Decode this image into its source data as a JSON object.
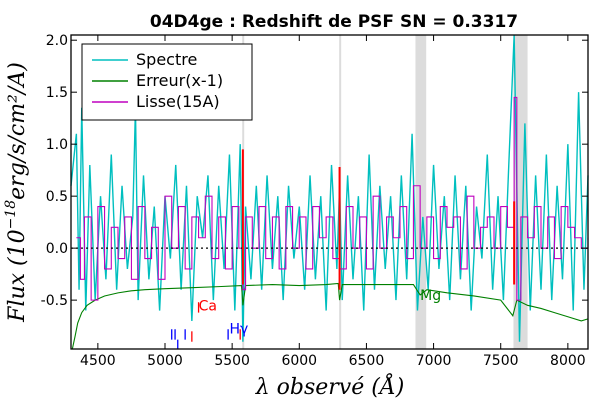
{
  "chart_data": {
    "type": "line",
    "title": "04D4ge : Redshift de PSF SN = 0.3317",
    "xlabel": "λ observé (Å)",
    "ylabel_prefix": "Flux (10",
    "ylabel_exp": "−18",
    "ylabel_suffix": "erg/s/cm²/A)",
    "xlim": [
      4300,
      8150
    ],
    "ylim": [
      -0.97,
      2.05
    ],
    "xticks": [
      4500,
      5000,
      5500,
      6000,
      6500,
      7000,
      7500,
      8000
    ],
    "yticks": [
      -0.5,
      0.0,
      0.5,
      1.0,
      1.5,
      2.0
    ],
    "ytick_labels": [
      "-0.5",
      "0.0",
      "0.5",
      "1.0",
      "1.5",
      "2.0"
    ],
    "zero_line": 0.0,
    "grey_bands": [
      [
        5575,
        5585
      ],
      [
        6297,
        6306
      ],
      [
        6865,
        6945
      ],
      [
        7595,
        7700
      ]
    ],
    "legend": {
      "position": "top-left",
      "entries": [
        {
          "label": "Spectre",
          "color": "#00bfbf"
        },
        {
          "label": "Erreur(x-1)",
          "color": "#008000"
        },
        {
          "label": "Lisse(15A)",
          "color": "#bf00bf"
        }
      ]
    },
    "series": [
      {
        "name": "Spectre",
        "color": "#00bfbf",
        "x": [
          4300,
          4340,
          4360,
          4380,
          4410,
          4440,
          4480,
          4520,
          4560,
          4600,
          4640,
          4680,
          4720,
          4760,
          4780,
          4800,
          4840,
          4880,
          4920,
          4960,
          5000,
          5040,
          5080,
          5120,
          5160,
          5200,
          5240,
          5280,
          5320,
          5360,
          5400,
          5440,
          5480,
          5520,
          5560,
          5580,
          5600,
          5640,
          5680,
          5720,
          5760,
          5800,
          5840,
          5880,
          5920,
          5960,
          6000,
          6040,
          6080,
          6120,
          6160,
          6200,
          6240,
          6280,
          6300,
          6320,
          6360,
          6400,
          6440,
          6480,
          6520,
          6560,
          6600,
          6640,
          6680,
          6720,
          6760,
          6800,
          6840,
          6880,
          6920,
          6960,
          7000,
          7040,
          7080,
          7120,
          7160,
          7200,
          7240,
          7280,
          7320,
          7360,
          7400,
          7440,
          7480,
          7520,
          7560,
          7600,
          7640,
          7680,
          7720,
          7760,
          7800,
          7840,
          7880,
          7920,
          7960,
          8000,
          8040,
          8080,
          8120,
          8150
        ],
        "y": [
          0.6,
          1.1,
          -0.4,
          1.35,
          -0.6,
          0.8,
          -0.5,
          0.5,
          -0.3,
          0.9,
          -0.4,
          0.6,
          -0.2,
          0.3,
          1.35,
          -0.5,
          0.7,
          -0.3,
          0.4,
          -0.6,
          0.5,
          -0.1,
          0.8,
          -0.4,
          0.6,
          -0.7,
          0.5,
          0.1,
          0.7,
          -0.5,
          0.6,
          -0.2,
          0.9,
          -0.6,
          1.0,
          -0.9,
          0.4,
          -0.3,
          0.6,
          -0.4,
          0.7,
          -0.2,
          0.5,
          -0.5,
          0.6,
          -0.1,
          0.4,
          -0.4,
          0.7,
          -0.3,
          0.5,
          -0.6,
          0.8,
          -0.2,
          0.6,
          -0.5,
          0.7,
          -0.3,
          0.5,
          -0.6,
          0.9,
          -0.4,
          0.6,
          -0.2,
          0.5,
          -0.5,
          0.7,
          -0.3,
          1.1,
          -0.6,
          0.3,
          -0.4,
          0.8,
          -0.2,
          0.5,
          -0.5,
          0.7,
          -0.3,
          0.6,
          -0.6,
          0.4,
          -0.1,
          0.9,
          -0.4,
          0.5,
          -0.5,
          0.8,
          2.05,
          -0.9,
          1.2,
          -0.6,
          0.7,
          -0.4,
          0.9,
          -0.5,
          0.6,
          -0.3,
          1.0,
          -0.6,
          1.5,
          -0.4,
          0.7
        ]
      },
      {
        "name": "Erreur(x-1)",
        "color": "#008000",
        "x": [
          4310,
          4330,
          4350,
          4380,
          4420,
          4480,
          4550,
          4650,
          4750,
          4850,
          5000,
          5200,
          5400,
          5570,
          5580,
          5600,
          5800,
          6000,
          6200,
          6290,
          6300,
          6320,
          6500,
          6700,
          6850,
          6900,
          6950,
          7100,
          7300,
          7500,
          7590,
          7620,
          7700,
          7800,
          7900,
          8000,
          8100,
          8150
        ],
        "y": [
          -0.97,
          -0.85,
          -0.72,
          -0.62,
          -0.55,
          -0.5,
          -0.46,
          -0.43,
          -0.41,
          -0.4,
          -0.39,
          -0.38,
          -0.37,
          -0.36,
          -0.55,
          -0.36,
          -0.35,
          -0.36,
          -0.35,
          -0.34,
          -0.5,
          -0.35,
          -0.35,
          -0.35,
          -0.35,
          -0.45,
          -0.4,
          -0.43,
          -0.46,
          -0.5,
          -0.65,
          -0.5,
          -0.55,
          -0.58,
          -0.62,
          -0.66,
          -0.7,
          -0.68
        ]
      },
      {
        "name": "Lisse(15A)",
        "color": "#bf00bf",
        "x": [
          4340,
          4370,
          4400,
          4450,
          4500,
          4550,
          4600,
          4650,
          4700,
          4750,
          4800,
          4850,
          4900,
          4950,
          5000,
          5050,
          5100,
          5150,
          5200,
          5250,
          5300,
          5350,
          5400,
          5450,
          5500,
          5550,
          5580,
          5600,
          5650,
          5700,
          5750,
          5800,
          5850,
          5900,
          5950,
          6000,
          6050,
          6100,
          6150,
          6200,
          6250,
          6300,
          6350,
          6400,
          6450,
          6500,
          6550,
          6600,
          6650,
          6700,
          6750,
          6800,
          6850,
          6900,
          6950,
          7000,
          7050,
          7100,
          7150,
          7200,
          7250,
          7300,
          7350,
          7400,
          7450,
          7500,
          7550,
          7600,
          7620,
          7650,
          7700,
          7750,
          7800,
          7850,
          7900,
          7950,
          8000,
          8050,
          8100,
          8150
        ],
        "y": [
          0.1,
          -0.3,
          0.3,
          -0.5,
          0.4,
          -0.2,
          0.2,
          -0.1,
          0.3,
          -0.3,
          0.4,
          -0.1,
          0.2,
          -0.3,
          0.5,
          0.0,
          0.4,
          -0.2,
          0.3,
          0.1,
          0.5,
          -0.1,
          0.3,
          -0.2,
          0.4,
          0.0,
          -0.4,
          0.3,
          0.0,
          0.4,
          -0.1,
          0.3,
          -0.2,
          0.4,
          0.0,
          0.3,
          -0.2,
          0.4,
          0.1,
          0.3,
          -0.1,
          -0.2,
          0.4,
          0.0,
          0.3,
          -0.2,
          0.5,
          0.0,
          0.3,
          0.1,
          0.4,
          -0.1,
          0.6,
          0.0,
          0.3,
          -0.1,
          0.4,
          0.2,
          0.3,
          -0.2,
          0.5,
          0.0,
          0.2,
          0.3,
          0.0,
          0.4,
          0.2,
          1.45,
          -0.5,
          0.3,
          0.1,
          0.4,
          0.0,
          0.3,
          -0.1,
          0.4,
          0.2,
          0.1,
          0.0,
          0.1
        ]
      }
    ],
    "red_lines": [
      {
        "x": 5580,
        "y1": 0.95,
        "y2": -0.35
      },
      {
        "x": 6300,
        "y1": 0.78,
        "y2": -0.4
      },
      {
        "x": 7600,
        "y1": 0.45,
        "y2": -0.35
      }
    ],
    "annotations": [
      {
        "text": "Ca",
        "x": 5250,
        "y": -0.6,
        "color": "#ff0000"
      },
      {
        "text": "Hγ",
        "x": 5480,
        "y": -0.82,
        "color": "#0000ff"
      },
      {
        "text": "Mg",
        "x": 6900,
        "y": -0.5,
        "color": "#008000"
      }
    ],
    "marker_lines": [
      {
        "x": 5050,
        "y1": -0.78,
        "y2": -0.88,
        "color": "#0000ff"
      },
      {
        "x": 5075,
        "y1": -0.78,
        "y2": -0.88,
        "color": "#0000ff"
      },
      {
        "x": 5095,
        "y1": -0.88,
        "y2": -0.97,
        "color": "#0000ff"
      },
      {
        "x": 5150,
        "y1": -0.78,
        "y2": -0.88,
        "color": "#0000ff"
      },
      {
        "x": 5200,
        "y1": -0.8,
        "y2": -0.9,
        "color": "#ff0000"
      },
      {
        "x": 5250,
        "y1": -0.52,
        "y2": -0.62,
        "color": "#ff0000"
      },
      {
        "x": 5470,
        "y1": -0.78,
        "y2": -0.88,
        "color": "#0000ff"
      },
      {
        "x": 5560,
        "y1": -0.78,
        "y2": -0.88,
        "color": "#ff0000"
      }
    ]
  }
}
